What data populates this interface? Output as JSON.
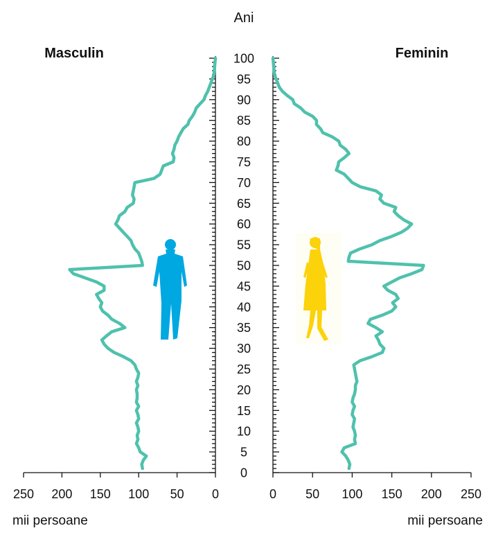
{
  "chart_data": {
    "type": "population-pyramid",
    "y_axis_title": "Ani",
    "left_label": "Masculin",
    "right_label": "Feminin",
    "x_unit_left": "mii persoane",
    "x_unit_right": "mii persoane",
    "age_ticks": [
      0,
      5,
      10,
      15,
      20,
      25,
      30,
      35,
      40,
      45,
      50,
      55,
      60,
      65,
      70,
      75,
      80,
      85,
      90,
      95,
      100
    ],
    "x_ticks": [
      0,
      50,
      100,
      150,
      200,
      250
    ],
    "xlim": [
      0,
      250
    ],
    "ylim": [
      0,
      100
    ],
    "line_color": "#4fc1ad",
    "male_color": "#00a8e1",
    "female_color": "#fcd20a",
    "male": {
      "ages": [
        1,
        2,
        3,
        4,
        5,
        6,
        7,
        8,
        9,
        10,
        11,
        12,
        13,
        14,
        15,
        16,
        17,
        18,
        19,
        20,
        21,
        22,
        23,
        24,
        25,
        26,
        27,
        28,
        29,
        30,
        31,
        32,
        33,
        34,
        35,
        36,
        37,
        38,
        39,
        40,
        41,
        42,
        43,
        44,
        45,
        46,
        47,
        48,
        49,
        50,
        51,
        52,
        53,
        54,
        55,
        56,
        57,
        58,
        59,
        60,
        61,
        62,
        63,
        64,
        65,
        66,
        67,
        68,
        69,
        70,
        71,
        72,
        73,
        74,
        75,
        76,
        77,
        78,
        79,
        80,
        81,
        82,
        83,
        84,
        85,
        86,
        87,
        88,
        89,
        90,
        91,
        92,
        93,
        94,
        95,
        96,
        97,
        98,
        99,
        100
      ],
      "values": [
        95,
        96,
        94,
        90,
        98,
        100,
        103,
        101,
        102,
        100,
        101,
        103,
        100,
        101,
        103,
        100,
        103,
        102,
        102,
        103,
        101,
        103,
        101,
        100,
        103,
        105,
        110,
        120,
        132,
        140,
        145,
        148,
        142,
        135,
        118,
        125,
        135,
        140,
        147,
        150,
        148,
        152,
        155,
        145,
        145,
        155,
        170,
        185,
        190,
        95,
        96,
        98,
        100,
        105,
        108,
        110,
        115,
        120,
        125,
        130,
        127,
        125,
        118,
        115,
        107,
        106,
        108,
        107,
        106,
        105,
        80,
        72,
        70,
        68,
        55,
        54,
        56,
        54,
        53,
        50,
        48,
        45,
        42,
        36,
        34,
        30,
        27,
        25,
        20,
        15,
        13,
        10,
        8,
        6,
        4,
        2,
        1.5,
        1,
        0.5,
        0
      ]
    },
    "female": {
      "ages": [
        1,
        2,
        3,
        4,
        5,
        6,
        7,
        8,
        9,
        10,
        11,
        12,
        13,
        14,
        15,
        16,
        17,
        18,
        19,
        20,
        21,
        22,
        23,
        24,
        25,
        26,
        27,
        28,
        29,
        30,
        31,
        32,
        33,
        34,
        35,
        36,
        37,
        38,
        39,
        40,
        41,
        42,
        43,
        44,
        45,
        46,
        47,
        48,
        49,
        50,
        51,
        52,
        53,
        54,
        55,
        56,
        57,
        58,
        59,
        60,
        61,
        62,
        63,
        64,
        65,
        66,
        67,
        68,
        69,
        70,
        71,
        72,
        73,
        74,
        75,
        76,
        77,
        78,
        79,
        80,
        81,
        82,
        83,
        84,
        85,
        86,
        87,
        88,
        89,
        90,
        91,
        92,
        93,
        94,
        95,
        96,
        97,
        98,
        99,
        100
      ],
      "values": [
        96,
        97,
        95,
        92,
        87,
        90,
        104,
        103,
        104,
        103,
        101,
        102,
        103,
        100,
        101,
        103,
        100,
        101,
        103,
        104,
        104,
        106,
        105,
        104,
        103,
        102,
        110,
        125,
        138,
        140,
        135,
        133,
        130,
        138,
        130,
        120,
        123,
        138,
        150,
        155,
        151,
        158,
        155,
        145,
        140,
        150,
        160,
        175,
        188,
        190,
        95,
        96,
        98,
        110,
        125,
        135,
        150,
        162,
        170,
        175,
        165,
        158,
        153,
        155,
        140,
        135,
        137,
        130,
        110,
        100,
        95,
        90,
        80,
        82,
        83,
        90,
        96,
        92,
        85,
        83,
        75,
        63,
        60,
        55,
        55,
        50,
        40,
        35,
        27,
        25,
        18,
        12,
        8,
        6,
        4,
        2,
        1.5,
        1,
        0.5,
        0
      ]
    }
  }
}
